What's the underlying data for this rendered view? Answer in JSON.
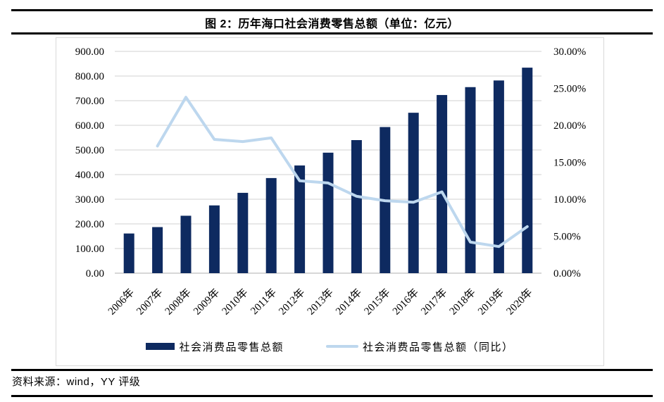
{
  "header": {
    "title": "图 2：历年海口社会消费零售总额（单位：亿元）"
  },
  "footer": {
    "source": "资料来源：wind，YY 评级"
  },
  "chart_data": {
    "type": "combo",
    "title": "图 2：历年海口社会消费零售总额（单位：亿元）",
    "categories": [
      "2006年",
      "2007年",
      "2008年",
      "2009年",
      "2010年",
      "2011年",
      "2012年",
      "2013年",
      "2014年",
      "2015年",
      "2016年",
      "2017年",
      "2018年",
      "2019年",
      "2020年"
    ],
    "series": [
      {
        "name": "社会消费品零售总额",
        "type": "bar",
        "color": "#0e2a60",
        "values": [
          161,
          187,
          233,
          275,
          326,
          386,
          437,
          489,
          540,
          593,
          651,
          723,
          755,
          782,
          834
        ]
      },
      {
        "name": "社会消费品零售总额（同比）",
        "type": "line",
        "color": "#bdd7ee",
        "values": [
          null,
          17.2,
          23.8,
          18.1,
          17.8,
          18.3,
          12.5,
          12.2,
          10.4,
          9.8,
          9.6,
          11.0,
          4.2,
          3.6,
          6.3
        ]
      }
    ],
    "left_axis": {
      "min": 0,
      "max": 900,
      "step": 100,
      "ticks": [
        "0.00",
        "100.00",
        "200.00",
        "300.00",
        "400.00",
        "500.00",
        "600.00",
        "700.00",
        "800.00",
        "900.00"
      ]
    },
    "right_axis": {
      "min": 0,
      "max": 30,
      "step": 5,
      "ticks": [
        "0.00%",
        "5.00%",
        "10.00%",
        "15.00%",
        "20.00%",
        "25.00%",
        "30.00%"
      ]
    },
    "grid": true,
    "legend_position": "bottom",
    "colors": {
      "gridline": "#d9d9d9",
      "axis_line": "#bfbfbf",
      "frame_border": "#d9d9d9",
      "text": "#000000"
    }
  }
}
